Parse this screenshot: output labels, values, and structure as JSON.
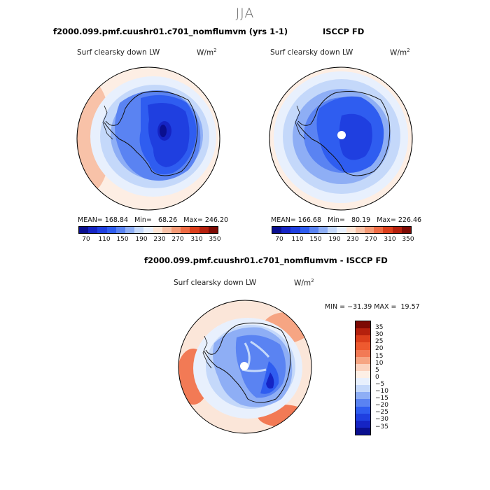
{
  "season": "JJA",
  "left_panel": {
    "title": "f2000.099.pmf.cuushr01.c701_nomflumvm (yrs 1-1)",
    "variable": "Surf clearsky down LW",
    "units": "W/m",
    "units_sup": "2",
    "stats": "MEAN= 168.84   Min=   68.26   Max= 246.20",
    "colorbar_ticks": [
      "70",
      "110",
      "150",
      "190",
      "230",
      "270",
      "310",
      "350"
    ]
  },
  "right_panel": {
    "title": "ISCCP FD",
    "variable": "Surf clearsky down LW",
    "units": "W/m",
    "units_sup": "2",
    "stats": "MEAN= 166.68   Min=   80.19   Max= 226.46",
    "colorbar_ticks": [
      "70",
      "110",
      "150",
      "190",
      "230",
      "270",
      "310",
      "350"
    ]
  },
  "diff_panel": {
    "title": "f2000.099.pmf.cuushr01.c701_nomflumvm - ISCCP FD",
    "variable": "Surf clearsky down LW",
    "units": "W/m",
    "units_sup": "2",
    "minmax": "MIN = −31.39 MAX =  19.57",
    "colorbar_ticks": [
      "35",
      "30",
      "25",
      "20",
      "15",
      "10",
      "5",
      "0",
      "−5",
      "−10",
      "−15",
      "−20",
      "−25",
      "−30",
      "−35"
    ]
  },
  "colors": {
    "abs_scale": [
      "#0a0f8f",
      "#1524c4",
      "#1f3fe0",
      "#2f5df0",
      "#5a83f2",
      "#8eaef5",
      "#c4d8fa",
      "#e8f0fd",
      "#fde5d6",
      "#f8c2a8",
      "#f49a76",
      "#ee6c45",
      "#dc3f1c",
      "#b5200d",
      "#7d0a04"
    ],
    "diff_scale": [
      "#7d0a04",
      "#b5200d",
      "#dc3f1c",
      "#ee5a2f",
      "#f27a55",
      "#f6a583",
      "#fbd3bf",
      "#fdefe5",
      "#e8f0fd",
      "#c4d8fa",
      "#8eaef5",
      "#5a83f2",
      "#2f5df0",
      "#1f3fe0",
      "#1524c4",
      "#0a0f8f"
    ]
  }
}
